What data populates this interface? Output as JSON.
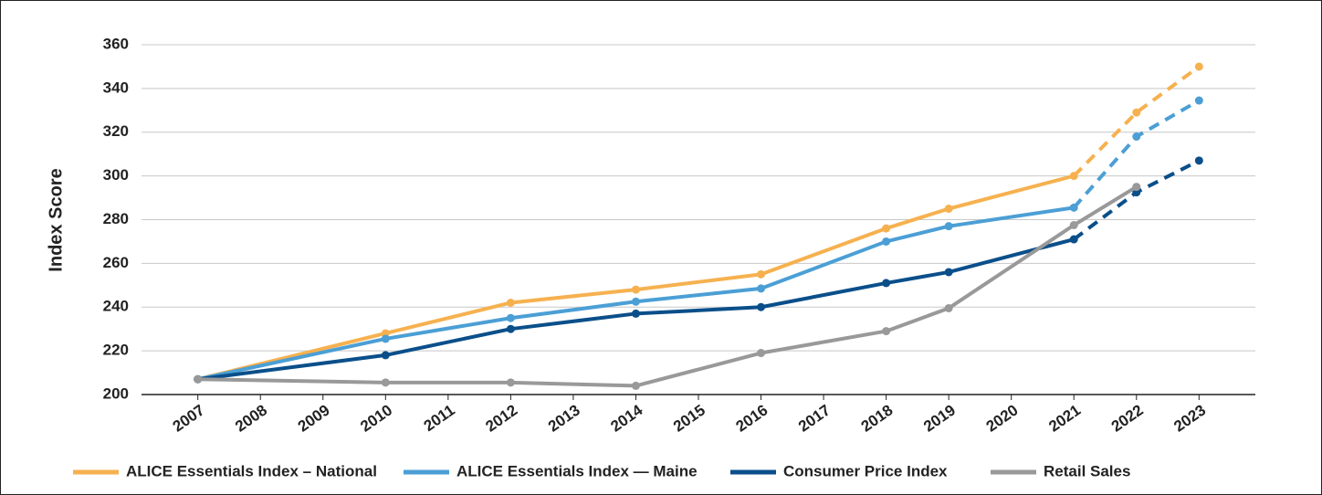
{
  "chart_data": {
    "type": "line",
    "y_label": "Index Score",
    "x": [
      2007,
      2010,
      2012,
      2014,
      2016,
      2018,
      2019,
      2021,
      2022,
      2023
    ],
    "xlim": [
      2006.1,
      2023.9
    ],
    "xticks": [
      2007,
      2008,
      2009,
      2010,
      2011,
      2012,
      2013,
      2014,
      2015,
      2016,
      2017,
      2018,
      2019,
      2020,
      2021,
      2022,
      2023
    ],
    "ylim": [
      200,
      360
    ],
    "yticks": [
      200,
      220,
      240,
      260,
      280,
      300,
      320,
      340,
      360
    ],
    "grid": true,
    "legend": "bottom",
    "projection_from": 2021,
    "series": [
      {
        "name": "ALICE Essentials Index – National",
        "color": "#f6b14f",
        "projected": true,
        "values": [
          207,
          228,
          242,
          248,
          255,
          276,
          285,
          300,
          329,
          350
        ]
      },
      {
        "name": "ALICE Essentials Index — Maine",
        "color": "#4b9fd5",
        "projected": true,
        "values": [
          207,
          225.5,
          235,
          242.5,
          248.5,
          270,
          277,
          285.5,
          318,
          334.5
        ]
      },
      {
        "name": "Consumer Price Index",
        "color": "#0a4f8a",
        "projected": true,
        "values": [
          207,
          218,
          230,
          237,
          240,
          251,
          256,
          271,
          292.5,
          307
        ]
      },
      {
        "name": "Retail Sales",
        "color": "#999999",
        "projected": false,
        "values": [
          207,
          205.5,
          205.5,
          204,
          219,
          229,
          239.5,
          277.5,
          295,
          null
        ]
      }
    ]
  }
}
